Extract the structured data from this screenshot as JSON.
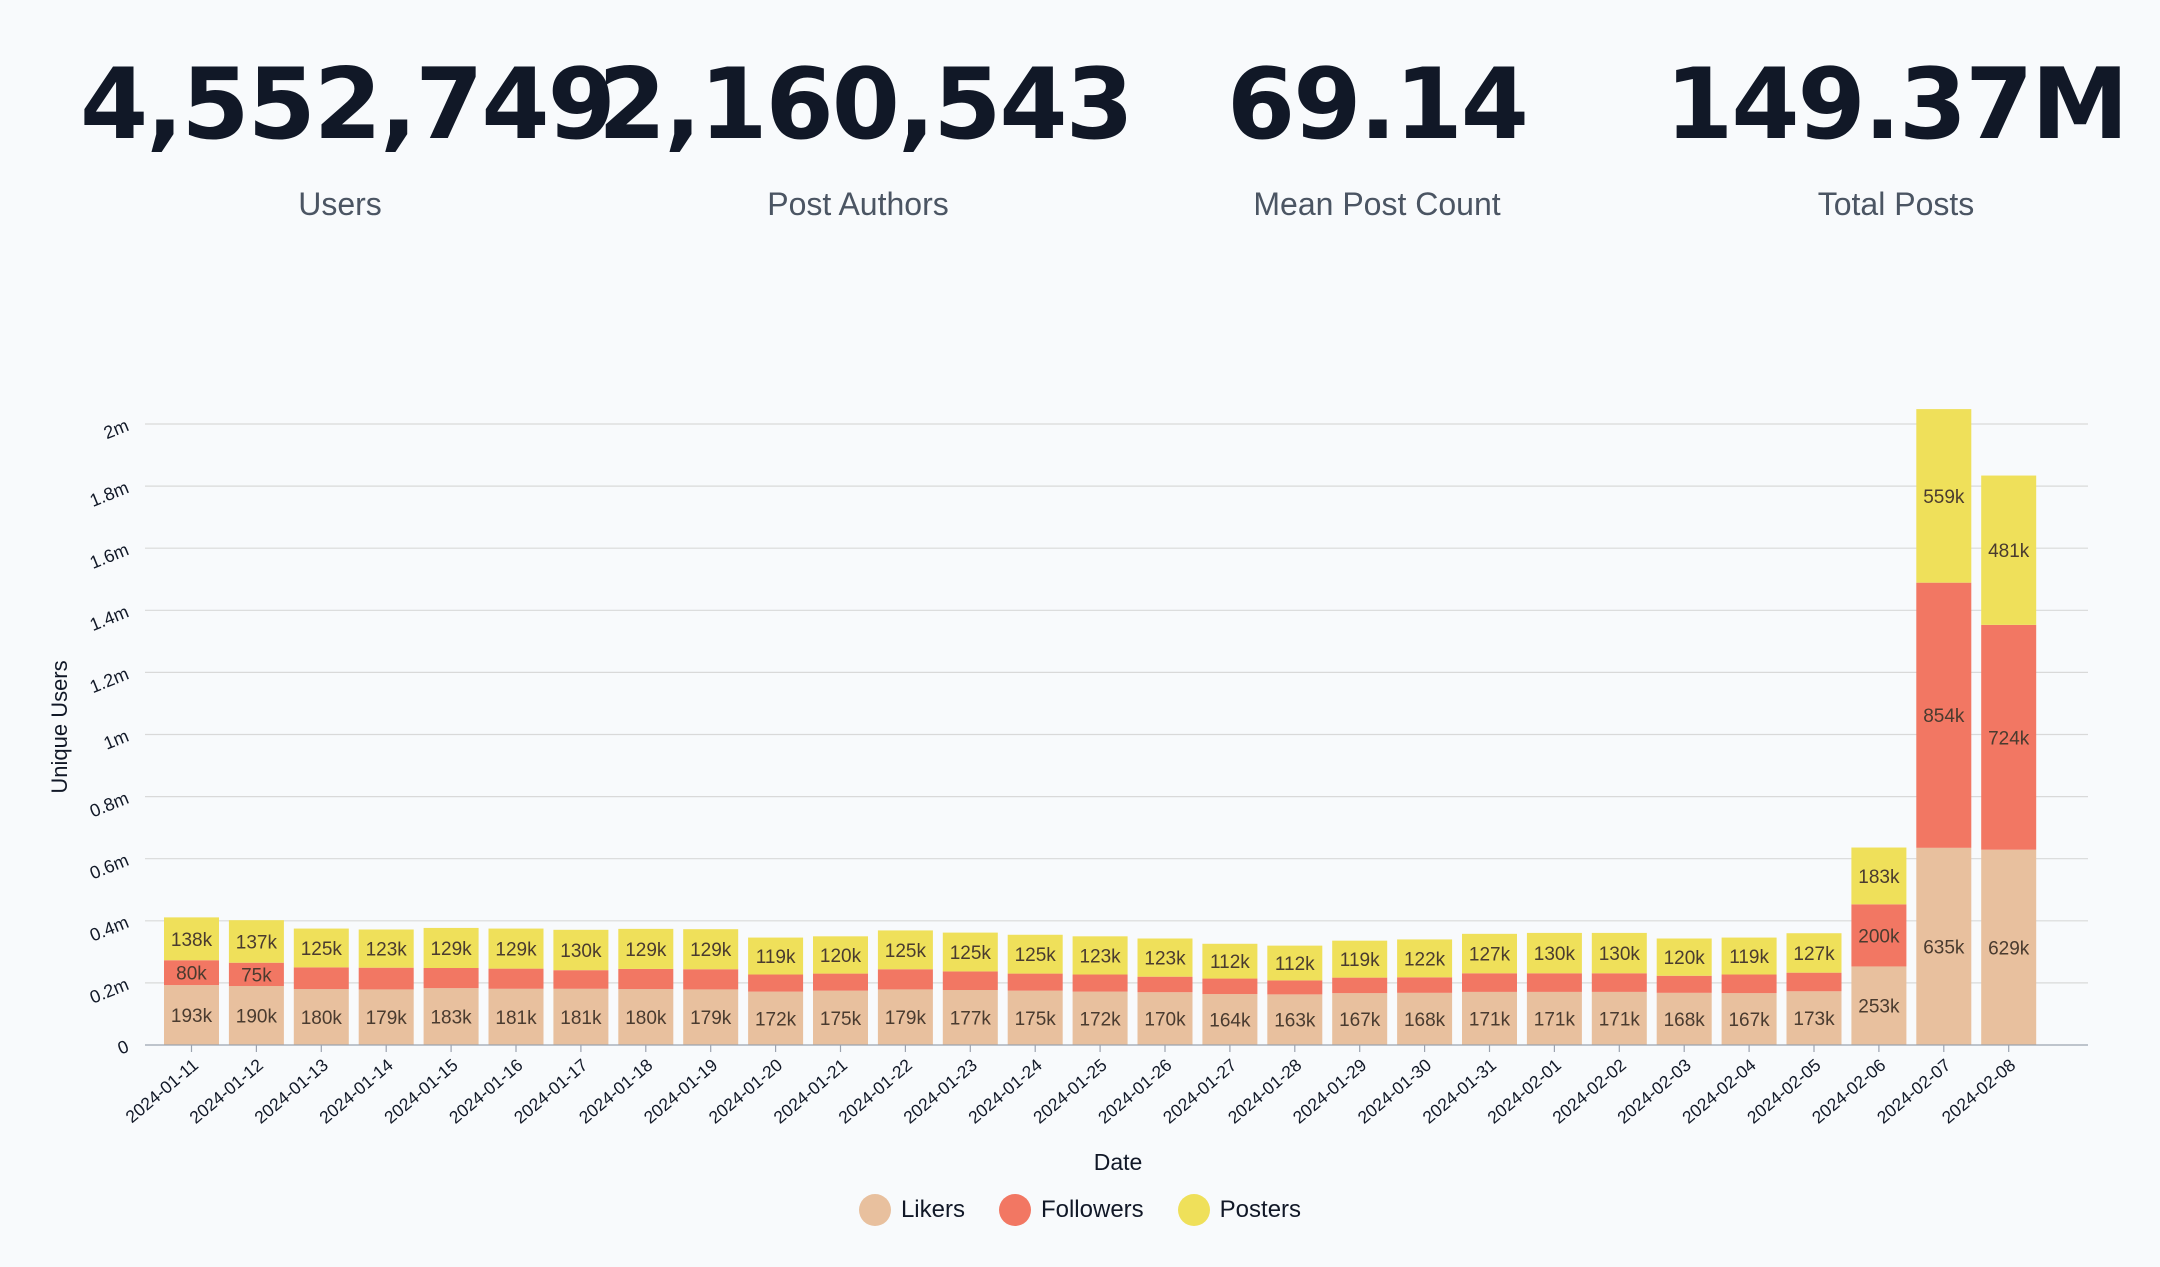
{
  "stats": [
    {
      "value": "4,552,749",
      "label": "Users"
    },
    {
      "value": "2,160,543",
      "label": "Post Authors"
    },
    {
      "value": "69.14",
      "label": "Mean Post Count"
    },
    {
      "value": "149.37M",
      "label": "Total Posts"
    }
  ],
  "colors": {
    "likers": "#e8c09e",
    "followers": "#f27763",
    "posters": "#efe05a",
    "grid": "#d9d9d9",
    "text": "#111827"
  },
  "chart_data": {
    "type": "bar",
    "stacked": true,
    "xlabel": "Date",
    "ylabel": "Unique Users",
    "ylim": [
      0,
      2000000
    ],
    "yticks": [
      0,
      200000,
      400000,
      600000,
      800000,
      1000000,
      1200000,
      1400000,
      1600000,
      1800000,
      2000000
    ],
    "ytick_labels": [
      "0",
      "0.2m",
      "0.4m",
      "0.6m",
      "0.8m",
      "1m",
      "1.2m",
      "1.4m",
      "1.6m",
      "1.8m",
      "2m"
    ],
    "categories": [
      "2024-01-11",
      "2024-01-12",
      "2024-01-13",
      "2024-01-14",
      "2024-01-15",
      "2024-01-16",
      "2024-01-17",
      "2024-01-18",
      "2024-01-19",
      "2024-01-20",
      "2024-01-21",
      "2024-01-22",
      "2024-01-23",
      "2024-01-24",
      "2024-01-25",
      "2024-01-26",
      "2024-01-27",
      "2024-01-28",
      "2024-01-29",
      "2024-01-30",
      "2024-01-31",
      "2024-02-01",
      "2024-02-02",
      "2024-02-03",
      "2024-02-04",
      "2024-02-05",
      "2024-02-06",
      "2024-02-07",
      "2024-02-08"
    ],
    "series": [
      {
        "name": "Likers",
        "values": [
          193000,
          190000,
          180000,
          179000,
          183000,
          181000,
          181000,
          180000,
          179000,
          172000,
          175000,
          179000,
          177000,
          175000,
          172000,
          170000,
          164000,
          163000,
          167000,
          168000,
          171000,
          171000,
          171000,
          168000,
          167000,
          173000,
          253000,
          635000,
          629000
        ],
        "labels": [
          "193k",
          "190k",
          "180k",
          "179k",
          "183k",
          "181k",
          "181k",
          "180k",
          "179k",
          "172k",
          "175k",
          "179k",
          "177k",
          "175k",
          "172k",
          "170k",
          "164k",
          "163k",
          "167k",
          "168k",
          "171k",
          "171k",
          "171k",
          "168k",
          "167k",
          "173k",
          "253k",
          "635k",
          "629k"
        ]
      },
      {
        "name": "Followers",
        "values": [
          80000,
          75000,
          70000,
          70000,
          65000,
          65000,
          60000,
          65000,
          65000,
          55000,
          55000,
          65000,
          60000,
          55000,
          55000,
          50000,
          50000,
          45000,
          50000,
          50000,
          60000,
          60000,
          60000,
          55000,
          60000,
          60000,
          200000,
          854000,
          724000
        ],
        "labels": [
          "80k",
          "75k",
          "",
          "",
          "",
          "",
          "",
          "",
          "",
          "",
          "",
          "",
          "",
          "",
          "",
          "",
          "",
          "",
          "",
          "",
          "",
          "",
          "",
          "",
          "",
          "",
          "200k",
          "854k",
          "724k"
        ]
      },
      {
        "name": "Posters",
        "values": [
          138000,
          137000,
          125000,
          123000,
          129000,
          129000,
          130000,
          129000,
          129000,
          119000,
          120000,
          125000,
          125000,
          125000,
          123000,
          123000,
          112000,
          112000,
          119000,
          122000,
          127000,
          130000,
          130000,
          120000,
          119000,
          127000,
          183000,
          559000,
          481000
        ],
        "labels": [
          "138k",
          "137k",
          "125k",
          "123k",
          "129k",
          "129k",
          "130k",
          "129k",
          "129k",
          "119k",
          "120k",
          "125k",
          "125k",
          "125k",
          "123k",
          "123k",
          "112k",
          "112k",
          "119k",
          "122k",
          "127k",
          "130k",
          "130k",
          "120k",
          "119k",
          "127k",
          "183k",
          "559k",
          "481k"
        ]
      }
    ],
    "legend_position": "bottom",
    "grid": true
  }
}
